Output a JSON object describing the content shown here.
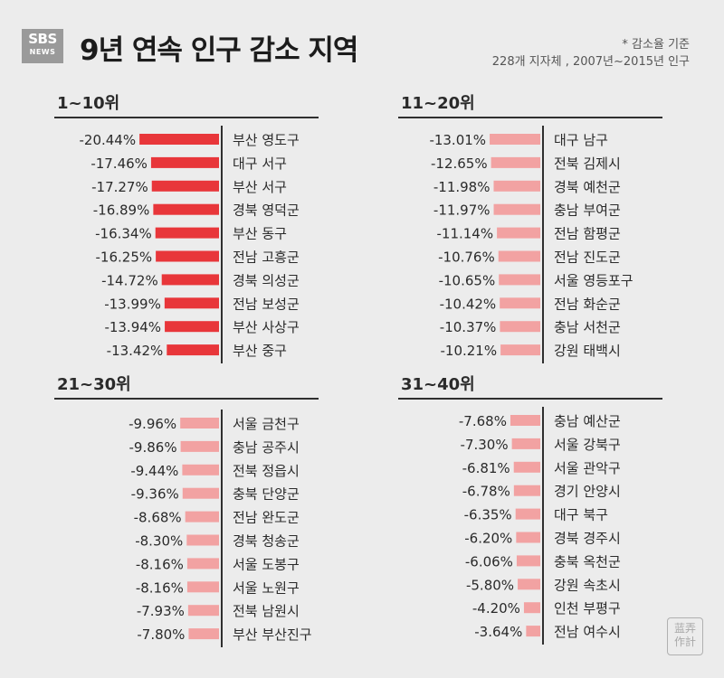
{
  "header": {
    "logo_top": "SBS",
    "logo_bottom": "NEWS",
    "title": "9년 연속 인구 감소 지역",
    "subtitle_line1": "* 감소율 기준",
    "subtitle_line2": "228개 지자체 , 2007년~2015년 인구"
  },
  "stamp": {
    "top": "蓝弄",
    "bottom": "作計"
  },
  "colors": {
    "dark_red": "#e8363a",
    "light_red": "#f2a2a2",
    "text": "#2a2a2a",
    "rule": "#2f2f2f"
  },
  "chart_data": [
    {
      "type": "bar",
      "title": "1~10위",
      "color": "#e8363a",
      "categories": [
        "부산 영도구",
        "대구 서구",
        "부산 서구",
        "경북 영덕군",
        "부산 동구",
        "전남 고흥군",
        "경북 의성군",
        "전남 보성군",
        "부산 사상구",
        "부산 중구"
      ],
      "values": [
        -20.44,
        -17.46,
        -17.27,
        -16.89,
        -16.34,
        -16.25,
        -14.72,
        -13.99,
        -13.94,
        -13.42
      ],
      "labels": [
        "-20.44%",
        "-17.46%",
        "-17.27%",
        "-16.89%",
        "-16.34%",
        "-16.25%",
        "-14.72%",
        "-13.99%",
        "-13.94%",
        "-13.42%"
      ]
    },
    {
      "type": "bar",
      "title": "11~20위",
      "color": "#f2a2a2",
      "categories": [
        "대구 남구",
        "전북 김제시",
        "경북 예천군",
        "충남 부여군",
        "전남 함평군",
        "전남 진도군",
        "서울 영등포구",
        "전남 화순군",
        "충남 서천군",
        "강원 태백시"
      ],
      "values": [
        -13.01,
        -12.65,
        -11.98,
        -11.97,
        -11.14,
        -10.76,
        -10.65,
        -10.42,
        -10.37,
        -10.21
      ],
      "labels": [
        "-13.01%",
        "-12.65%",
        "-11.98%",
        "-11.97%",
        "-11.14%",
        "-10.76%",
        "-10.65%",
        "-10.42%",
        "-10.37%",
        "-10.21%"
      ]
    },
    {
      "type": "bar",
      "title": "21~30위",
      "color": "#f2a2a2",
      "categories": [
        "서울 금천구",
        "충남 공주시",
        "전북 정읍시",
        "충북 단양군",
        "전남 완도군",
        "경북 청송군",
        "서울 도봉구",
        "서울 노원구",
        "전북 남원시",
        "부산 부산진구"
      ],
      "values": [
        -9.96,
        -9.86,
        -9.44,
        -9.36,
        -8.68,
        -8.3,
        -8.16,
        -8.16,
        -7.93,
        -7.8
      ],
      "labels": [
        "-9.96%",
        "-9.86%",
        "-9.44%",
        "-9.36%",
        "-8.68%",
        "-8.30%",
        "-8.16%",
        "-8.16%",
        "-7.93%",
        "-7.80%"
      ]
    },
    {
      "type": "bar",
      "title": "31~40위",
      "color": "#f2a2a2",
      "categories": [
        "충남 예산군",
        "서울 강북구",
        "서울 관악구",
        "경기 안양시",
        "대구 북구",
        "경북 경주시",
        "충북 옥천군",
        "강원 속초시",
        "인천 부평구",
        "전남 여수시"
      ],
      "values": [
        -7.68,
        -7.3,
        -6.81,
        -6.78,
        -6.35,
        -6.2,
        -6.06,
        -5.8,
        -4.2,
        -3.64
      ],
      "labels": [
        "-7.68%",
        "-7.30%",
        "-6.81%",
        "-6.78%",
        "-6.35%",
        "-6.20%",
        "-6.06%",
        "-5.80%",
        "-4.20%",
        "-3.64%"
      ]
    }
  ]
}
